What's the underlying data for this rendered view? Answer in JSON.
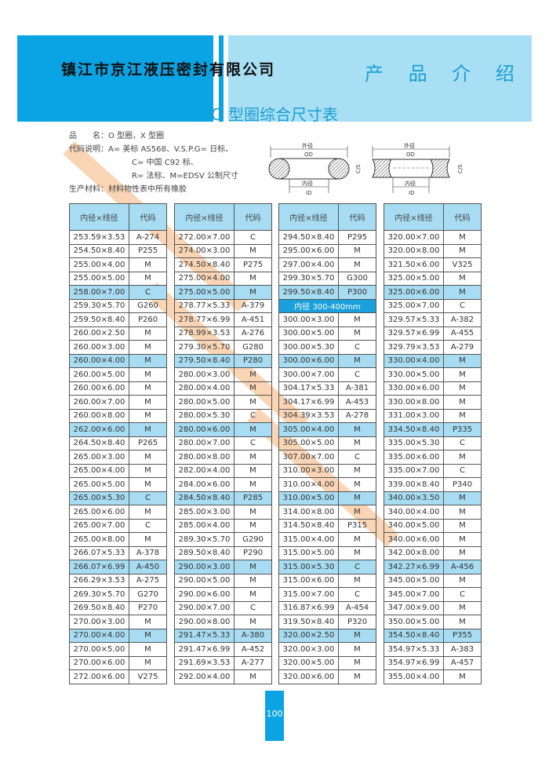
{
  "header": {
    "company": "镇江市京江液压密封有限公司",
    "section": "产 品 介 绍"
  },
  "title": "O 型圈综合尺寸表",
  "info": {
    "product_name": "品　　名：O 型圈，X 型圈",
    "code_line1": "代码说明：A= 美标 AS568、V.S.P.G= 日标、",
    "code_line2": "C= 中国 C92 标、",
    "code_line3": "R= 法标、M=EDSV 公制尺寸",
    "material": "生产材料：材料物性表中所有橡胶"
  },
  "diagram": {
    "od_cn": "外径",
    "od": "OD",
    "id_cn": "内径",
    "id": "ID",
    "cs_cn": "线径",
    "cs": "C/S"
  },
  "table_header": {
    "size": "内径×线径",
    "code": "代码"
  },
  "tables": [
    [
      [
        "253.59×3.53",
        "A-274"
      ],
      [
        "254.50×8.40",
        "P255"
      ],
      [
        "255.00×4.00",
        "M"
      ],
      [
        "255.00×5.00",
        "M"
      ],
      [
        "258.00×7.00",
        "C"
      ],
      [
        "259.30×5.70",
        "G260"
      ],
      [
        "259.50×8.40",
        "P260"
      ],
      [
        "260.00×2.50",
        "M"
      ],
      [
        "260.00×3.00",
        "M"
      ],
      [
        "260.00×4.00",
        "M"
      ],
      [
        "260.00×5.00",
        "M"
      ],
      [
        "260.00×6.00",
        "M"
      ],
      [
        "260.00×7.00",
        "M"
      ],
      [
        "260.00×8.00",
        "M"
      ],
      [
        "262.00×6.00",
        "M"
      ],
      [
        "264.50×8.40",
        "P265"
      ],
      [
        "265.00×3.00",
        "M"
      ],
      [
        "265.00×4.00",
        "M"
      ],
      [
        "265.00×5.00",
        "M"
      ],
      [
        "265.00×5.30",
        "C"
      ],
      [
        "265.00×6.00",
        "M"
      ],
      [
        "265.00×7.00",
        "C"
      ],
      [
        "265.00×8.00",
        "M"
      ],
      [
        "266.07×5.33",
        "A-378"
      ],
      [
        "266.07×6.99",
        "A-450"
      ],
      [
        "266.29×3.53",
        "A-275"
      ],
      [
        "269.30×5.70",
        "G270"
      ],
      [
        "269.50×8.40",
        "P270"
      ],
      [
        "270.00×3.00",
        "M"
      ],
      [
        "270.00×4.00",
        "M"
      ],
      [
        "270.00×5.00",
        "M"
      ],
      [
        "270.00×6.00",
        "M"
      ],
      [
        "272.00×6.00",
        "V275"
      ]
    ],
    [
      [
        "272.00×7.00",
        "C"
      ],
      [
        "274.00×3.00",
        "M"
      ],
      [
        "274.50×8.40",
        "P275"
      ],
      [
        "275.00×4.00",
        "M"
      ],
      [
        "275.00×5.00",
        "M"
      ],
      [
        "278.77×5.33",
        "A-379"
      ],
      [
        "278.77×6.99",
        "A-451"
      ],
      [
        "278.99×3.53",
        "A-276"
      ],
      [
        "279.30×5.70",
        "G280"
      ],
      [
        "279.50×8.40",
        "P280"
      ],
      [
        "280.00×3.00",
        "M"
      ],
      [
        "280.00×4.00",
        "M"
      ],
      [
        "280.00×5.00",
        "M"
      ],
      [
        "280.00×5.30",
        "C"
      ],
      [
        "280.00×6.00",
        "M"
      ],
      [
        "280.00×7.00",
        "C"
      ],
      [
        "280.00×8.00",
        "M"
      ],
      [
        "282.00×4.00",
        "M"
      ],
      [
        "284.00×6.00",
        "M"
      ],
      [
        "284.50×8.40",
        "P285"
      ],
      [
        "285.00×3.00",
        "M"
      ],
      [
        "285.00×4.00",
        "M"
      ],
      [
        "289.30×5.70",
        "G290"
      ],
      [
        "289.50×8.40",
        "P290"
      ],
      [
        "290.00×3.00",
        "M"
      ],
      [
        "290.00×5.00",
        "M"
      ],
      [
        "290.00×6.00",
        "M"
      ],
      [
        "290.00×7.00",
        "C"
      ],
      [
        "290.00×8.00",
        "M"
      ],
      [
        "291.47×5.33",
        "A-380"
      ],
      [
        "291.47×6.99",
        "A-452"
      ],
      [
        "291.69×3.53",
        "A-277"
      ],
      [
        "292.00×4.00",
        "M"
      ]
    ],
    [
      [
        "294.50×8.40",
        "P295"
      ],
      [
        "295.00×6.00",
        "M"
      ],
      [
        "297.00×4.00",
        "M"
      ],
      [
        "299.30×5.70",
        "G300"
      ],
      [
        "299.50×8.40",
        "P300"
      ],
      [
        "内径 300-400mm"
      ],
      [
        "300.00×3.00",
        "M"
      ],
      [
        "300.00×5.00",
        "M"
      ],
      [
        "300.00×5.30",
        "C"
      ],
      [
        "300.00×6.00",
        "M"
      ],
      [
        "300.00×7.00",
        "C"
      ],
      [
        "304.17×5.33",
        "A-381"
      ],
      [
        "304.17×6.99",
        "A-453"
      ],
      [
        "304.39×3.53",
        "A-278"
      ],
      [
        "305.00×4.00",
        "M"
      ],
      [
        "305.00×5.00",
        "M"
      ],
      [
        "307.00×7.00",
        "C"
      ],
      [
        "310.00×3.00",
        "M"
      ],
      [
        "310.00×4.00",
        "M"
      ],
      [
        "310.00×5.00",
        "M"
      ],
      [
        "314.00×8.00",
        "M"
      ],
      [
        "314.50×8.40",
        "P315"
      ],
      [
        "315.00×4.00",
        "M"
      ],
      [
        "315.00×5.00",
        "M"
      ],
      [
        "315.00×5.30",
        "C"
      ],
      [
        "315.00×6.00",
        "M"
      ],
      [
        "315.00×7.00",
        "C"
      ],
      [
        "316.87×6.99",
        "A-454"
      ],
      [
        "319.50×8.40",
        "P320"
      ],
      [
        "320.00×2.50",
        "M"
      ],
      [
        "320.00×3.00",
        "M"
      ],
      [
        "320.00×5.00",
        "M"
      ],
      [
        "320.00×6.00",
        "M"
      ]
    ],
    [
      [
        "320.00×7.00",
        "M"
      ],
      [
        "320.00×8.00",
        "M"
      ],
      [
        "321.50×6.00",
        "V325"
      ],
      [
        "325.00×5.00",
        "M"
      ],
      [
        "325.00×6.00",
        "M"
      ],
      [
        "325.00×7.00",
        "C"
      ],
      [
        "329.57×5.33",
        "A-382"
      ],
      [
        "329.57×6.99",
        "A-455"
      ],
      [
        "329.79×3.53",
        "A-279"
      ],
      [
        "330.00×4.00",
        "M"
      ],
      [
        "330.00×5.00",
        "M"
      ],
      [
        "330.00×6.00",
        "M"
      ],
      [
        "330.00×8.00",
        "M"
      ],
      [
        "331.00×3.00",
        "M"
      ],
      [
        "334.50×8.40",
        "P335"
      ],
      [
        "335.00×5.30",
        "C"
      ],
      [
        "335.00×6.00",
        "M"
      ],
      [
        "335.00×7.00",
        "C"
      ],
      [
        "339.00×8.40",
        "P340"
      ],
      [
        "340.00×3.50",
        "M"
      ],
      [
        "340.00×4.00",
        "M"
      ],
      [
        "340.00×5.00",
        "M"
      ],
      [
        "340.00×6.00",
        "M"
      ],
      [
        "342.00×8.00",
        "M"
      ],
      [
        "342.27×6.99",
        "A-456"
      ],
      [
        "345.00×5.00",
        "M"
      ],
      [
        "345.00×7.00",
        "C"
      ],
      [
        "347.00×9.00",
        "M"
      ],
      [
        "350.00×5.00",
        "M"
      ],
      [
        "354.50×8.40",
        "P355"
      ],
      [
        "354.97×5.33",
        "A-383"
      ],
      [
        "354.97×6.99",
        "A-457"
      ],
      [
        "355.00×4.00",
        "M"
      ]
    ]
  ],
  "page_number": "100",
  "colors": {
    "brand_blue": "#0aa4e4",
    "light_blue": "#a8dff5",
    "row_highlight": "#a8dcf2",
    "watermark": "#f3a25a"
  }
}
